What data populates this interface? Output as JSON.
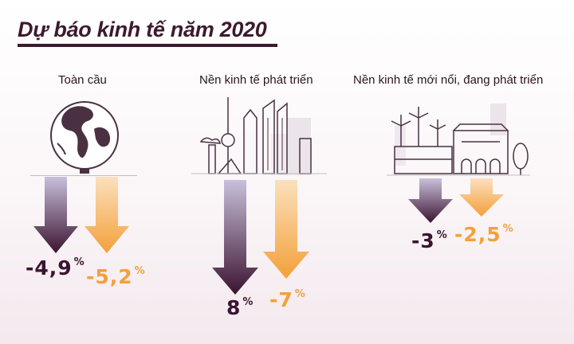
{
  "title": "Dự báo kinh tế năm 2020",
  "columns": [
    {
      "label": "Toàn cầu",
      "purple_value": "-4,9",
      "orange_value": "-5,2",
      "unit": "%"
    },
    {
      "label": "Nền kinh tế phát triển",
      "purple_value": "8",
      "orange_value": "-7",
      "unit": "%"
    },
    {
      "label": "Nền kinh tế mới nổi, đang phát triển",
      "purple_value": "-3",
      "orange_value": "-2,5",
      "unit": "%"
    }
  ],
  "colors": {
    "purple": "#3b1430",
    "purple_light": "#c9c0dc",
    "orange": "#f3a03a",
    "orange_light": "#fbe0bd",
    "ink": "#4a3142",
    "line_gray": "#bfbfbf"
  },
  "icons": [
    "globe-icon",
    "city-skyline-icon",
    "factory-town-icon",
    "down-arrow-icon"
  ]
}
